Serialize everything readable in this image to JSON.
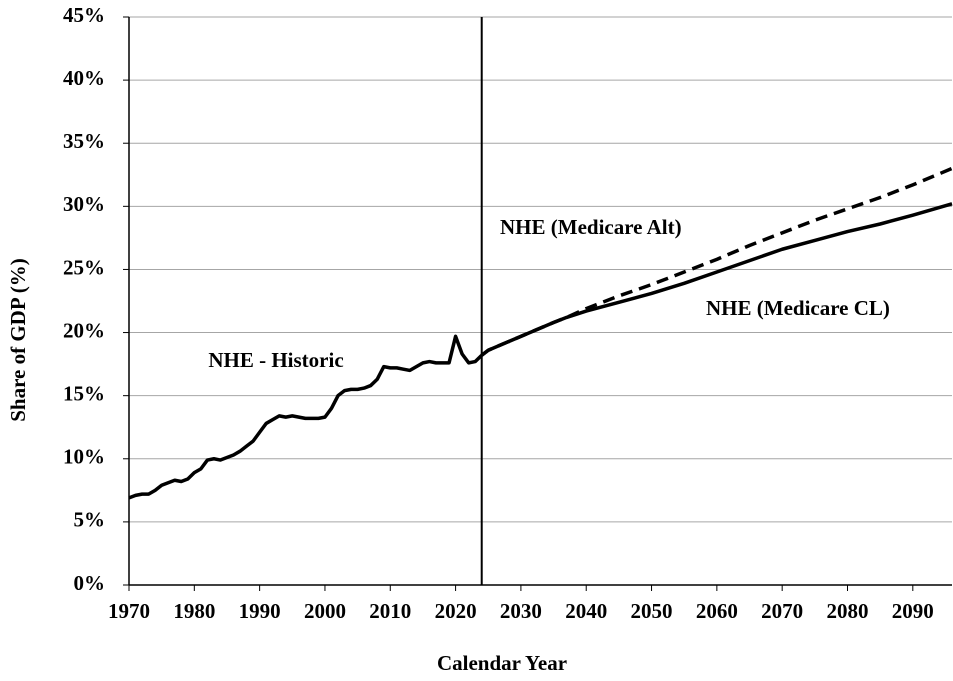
{
  "chart_data": {
    "type": "line",
    "x_label": "Calendar Year",
    "y_label": "Share of GDP (%)",
    "xlim": [
      1970,
      2096
    ],
    "xticks": [
      1970,
      1980,
      1990,
      2000,
      2010,
      2020,
      2030,
      2040,
      2050,
      2060,
      2070,
      2080,
      2090
    ],
    "ylim": [
      0,
      45
    ],
    "yticks": [
      {
        "value": 0,
        "label": "0%"
      },
      {
        "value": 5,
        "label": "5%"
      },
      {
        "value": 10,
        "label": "10%"
      },
      {
        "value": 15,
        "label": "15%"
      },
      {
        "value": 20,
        "label": "20%"
      },
      {
        "value": 25,
        "label": "25%"
      },
      {
        "value": 30,
        "label": "30%"
      },
      {
        "value": 35,
        "label": "35%"
      },
      {
        "value": 40,
        "label": "40%"
      },
      {
        "value": 45,
        "label": "45%"
      }
    ],
    "grid": true,
    "vline": 2024,
    "series": [
      {
        "name": "NHE - Historic",
        "color": "#000000",
        "dash": false,
        "x": [
          1970,
          1971,
          1972,
          1973,
          1974,
          1975,
          1976,
          1977,
          1978,
          1979,
          1980,
          1981,
          1982,
          1983,
          1984,
          1985,
          1986,
          1987,
          1988,
          1989,
          1990,
          1991,
          1992,
          1993,
          1994,
          1995,
          1996,
          1997,
          1998,
          1999,
          2000,
          2001,
          2002,
          2003,
          2004,
          2005,
          2006,
          2007,
          2008,
          2009,
          2010,
          2011,
          2012,
          2013,
          2014,
          2015,
          2016,
          2017,
          2018,
          2019,
          2020,
          2021,
          2022,
          2023,
          2024
        ],
        "values": [
          6.9,
          7.1,
          7.2,
          7.2,
          7.5,
          7.9,
          8.1,
          8.3,
          8.2,
          8.4,
          8.9,
          9.2,
          9.9,
          10.0,
          9.9,
          10.1,
          10.3,
          10.6,
          11.0,
          11.4,
          12.1,
          12.8,
          13.1,
          13.4,
          13.3,
          13.4,
          13.3,
          13.2,
          13.2,
          13.2,
          13.3,
          14.0,
          15.0,
          15.4,
          15.5,
          15.5,
          15.6,
          15.8,
          16.3,
          17.3,
          17.2,
          17.2,
          17.1,
          17.0,
          17.3,
          17.6,
          17.7,
          17.6,
          17.6,
          17.6,
          19.7,
          18.3,
          17.6,
          17.7,
          18.2
        ]
      },
      {
        "name": "NHE (Medicare Alt)",
        "color": "#000000",
        "dash": true,
        "x": [
          2024,
          2025,
          2030,
          2035,
          2037,
          2040,
          2045,
          2050,
          2055,
          2060,
          2065,
          2070,
          2075,
          2080,
          2085,
          2090,
          2096
        ],
        "values": [
          18.2,
          18.6,
          19.7,
          20.8,
          21.2,
          21.9,
          22.9,
          23.8,
          24.8,
          25.8,
          26.9,
          27.9,
          28.9,
          29.8,
          30.7,
          31.7,
          33.0
        ]
      },
      {
        "name": "NHE (Medicare CL)",
        "color": "#000000",
        "dash": false,
        "x": [
          2024,
          2025,
          2030,
          2035,
          2037,
          2040,
          2045,
          2050,
          2055,
          2060,
          2065,
          2070,
          2075,
          2080,
          2085,
          2090,
          2096
        ],
        "values": [
          18.2,
          18.6,
          19.7,
          20.8,
          21.2,
          21.7,
          22.4,
          23.1,
          23.9,
          24.8,
          25.7,
          26.6,
          27.3,
          28.0,
          28.6,
          29.3,
          30.2
        ]
      }
    ]
  }
}
